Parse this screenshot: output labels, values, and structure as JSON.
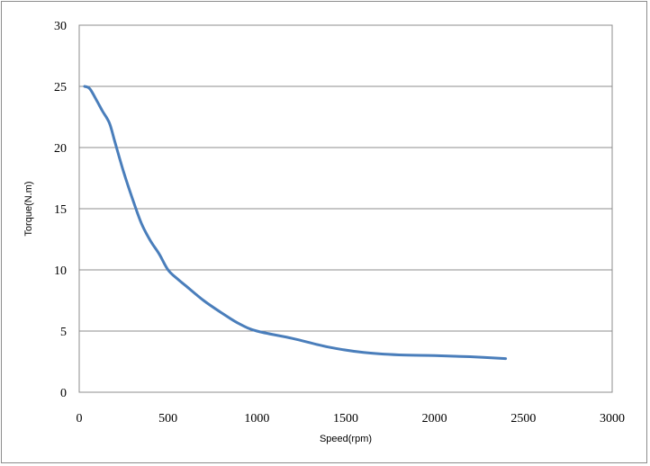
{
  "chart_data": {
    "type": "line",
    "title": "",
    "xlabel": "Speed(rpm)",
    "ylabel": "Torque(N.m)",
    "xlim": [
      0,
      3000
    ],
    "ylim": [
      0,
      30
    ],
    "x_ticks": [
      "0",
      "500",
      "1000",
      "1500",
      "2000",
      "2500",
      "3000"
    ],
    "y_ticks": [
      "0",
      "5",
      "10",
      "15",
      "20",
      "25",
      "30"
    ],
    "grid": "horizontal",
    "legend": "none",
    "series": [
      {
        "color": "#4a7ebb",
        "x": [
          30,
          60,
          100,
          130,
          170,
          200,
          250,
          300,
          350,
          400,
          450,
          500,
          550,
          600,
          700,
          800,
          900,
          1000,
          1200,
          1400,
          1600,
          1800,
          2000,
          2200,
          2400
        ],
        "y": [
          25.0,
          24.8,
          23.8,
          23.0,
          22.0,
          20.5,
          18.0,
          15.8,
          13.8,
          12.4,
          11.3,
          10.0,
          9.3,
          8.7,
          7.5,
          6.5,
          5.6,
          5.0,
          4.4,
          3.7,
          3.25,
          3.05,
          3.0,
          2.9,
          2.75
        ]
      }
    ]
  }
}
